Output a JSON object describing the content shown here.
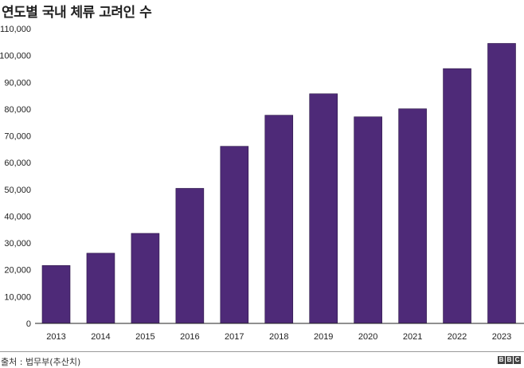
{
  "chart_data": {
    "type": "bar",
    "title": "연도별 국내 체류 고려인 수",
    "xlabel": "",
    "ylabel": "",
    "categories": [
      "2013",
      "2014",
      "2015",
      "2016",
      "2017",
      "2018",
      "2019",
      "2020",
      "2021",
      "2022",
      "2023"
    ],
    "values": [
      21600,
      26200,
      33600,
      50400,
      66100,
      77700,
      85700,
      77100,
      80100,
      95100,
      104500
    ],
    "ylim": [
      0,
      110000
    ],
    "yticks": [
      0,
      10000,
      20000,
      30000,
      40000,
      50000,
      60000,
      70000,
      80000,
      90000,
      100000,
      110000
    ],
    "ytick_labels": [
      "0",
      "10,000",
      "20,000",
      "30,000",
      "40,000",
      "50,000",
      "60,000",
      "70,000",
      "80,000",
      "90,000",
      "100,000",
      "110,000"
    ],
    "grid": false,
    "bar_color": "#4e2a78"
  },
  "footer": {
    "source": "출처 : 법무부(추산치)",
    "logo": [
      "B",
      "B",
      "C"
    ]
  }
}
